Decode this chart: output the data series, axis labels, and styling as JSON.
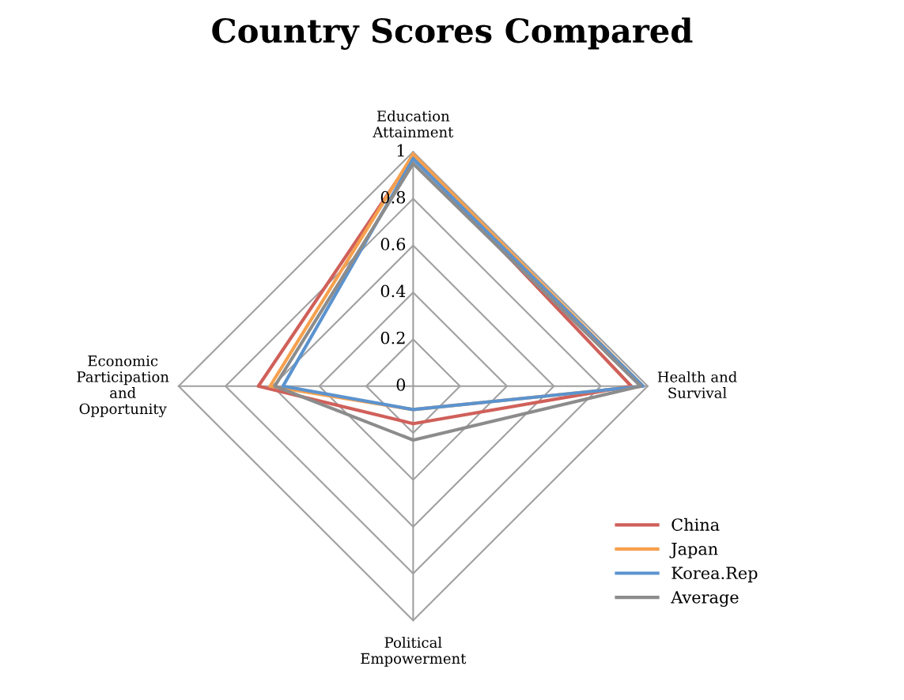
{
  "chart_data": {
    "type": "radar",
    "title": "Country Scores Compared",
    "categories": [
      "Education Attainment",
      "Health and Survival",
      "Political Empowerment",
      "Economic Participation and Opportunity"
    ],
    "series": [
      {
        "name": "China",
        "color": "#d0605a",
        "values": [
          0.98,
          0.93,
          0.16,
          0.66
        ]
      },
      {
        "name": "Japan",
        "color": "#f6a04d",
        "values": [
          0.99,
          0.98,
          0.1,
          0.61
        ]
      },
      {
        "name": "Korea.Rep",
        "color": "#5b93cf",
        "values": [
          0.97,
          0.98,
          0.1,
          0.555
        ]
      },
      {
        "name": "Average",
        "color": "#8c8c8c",
        "values": [
          0.95,
          0.97,
          0.23,
          0.59
        ]
      }
    ],
    "ylim": [
      0,
      1
    ],
    "yticks": [
      0,
      0.2,
      0.4,
      0.6,
      0.8,
      1
    ],
    "grid": true,
    "legend": "right",
    "marker": "none"
  }
}
